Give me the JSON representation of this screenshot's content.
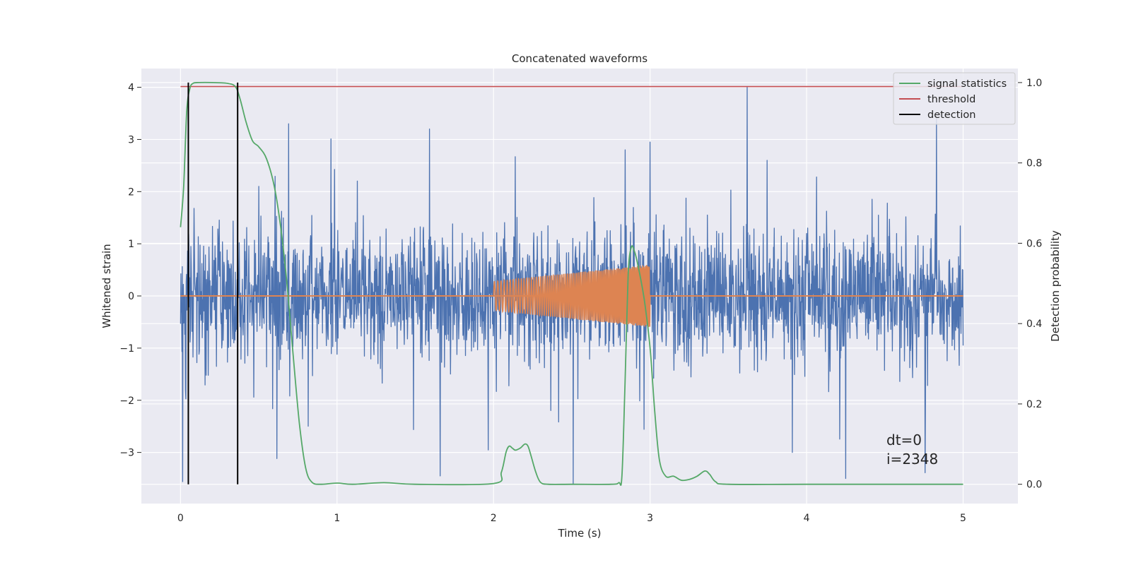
{
  "chart_data": {
    "type": "line",
    "title": "Concatenated waveforms",
    "xlabel": "Time (s)",
    "ylabel": "Whitened strain",
    "ylabel_right": "Detection probability",
    "xlim": [
      -0.25,
      5.35
    ],
    "ylim": [
      -3.98,
      4.36
    ],
    "ylim_right": [
      -0.048,
      1.035
    ],
    "x_ticks": [
      0,
      1,
      2,
      3,
      4,
      5
    ],
    "x_tick_labels": [
      "0",
      "1",
      "2",
      "3",
      "4",
      "5"
    ],
    "y_ticks": [
      -3,
      -2,
      -1,
      0,
      1,
      2,
      3,
      4
    ],
    "y_tick_labels": [
      "−3",
      "−2",
      "−1",
      "0",
      "1",
      "2",
      "3",
      "4"
    ],
    "y_ticks_right": [
      0.0,
      0.2,
      0.4,
      0.6,
      0.8,
      1.0
    ],
    "y_tick_labels_right": [
      "0.0",
      "0.2",
      "0.4",
      "0.6",
      "0.8",
      "1.0"
    ],
    "grid": true,
    "legend_position": "top-right",
    "legend": [
      {
        "label": "signal statistics",
        "color": "#55a868"
      },
      {
        "label": "threshold",
        "color": "#c44e52"
      },
      {
        "label": "detection",
        "color": "#000000"
      }
    ],
    "series": [
      {
        "key": "noise",
        "axis": "left",
        "color": "#4c72b0",
        "x_range": [
          0,
          5
        ],
        "typical_envelope": [
          -1.5,
          1.5
        ],
        "spikes": [
          {
            "x": 0.5,
            "y": 2.1
          },
          {
            "x": 0.69,
            "y": 3.3
          },
          {
            "x": 1.59,
            "y": 3.2
          },
          {
            "x": 1.66,
            "y": -3.45
          },
          {
            "x": 2.51,
            "y": -3.6
          },
          {
            "x": 2.84,
            "y": 2.8
          },
          {
            "x": 3.0,
            "y": 2.95
          },
          {
            "x": 3.62,
            "y": 4.0
          },
          {
            "x": 3.91,
            "y": -3.0
          },
          {
            "x": 4.25,
            "y": -3.5
          },
          {
            "x": 4.83,
            "y": 3.4
          }
        ]
      },
      {
        "key": "waveform",
        "axis": "left",
        "color": "#dd8452",
        "baseline_x": [
          0,
          5
        ],
        "baseline_y": 0,
        "chirp_x_range": [
          2.0,
          3.0
        ],
        "chirp_amplitude_range": [
          0.28,
          0.6
        ]
      },
      {
        "key": "signal statistics",
        "axis": "right",
        "color": "#55a868",
        "x": [
          0.0,
          0.02,
          0.04,
          0.06,
          0.08,
          0.12,
          0.2,
          0.3,
          0.35,
          0.38,
          0.42,
          0.46,
          0.5,
          0.55,
          0.6,
          0.64,
          0.68,
          0.72,
          0.76,
          0.8,
          0.84,
          0.9,
          1.0,
          1.1,
          1.3,
          1.5,
          2.0,
          2.05,
          2.08,
          2.1,
          2.12,
          2.14,
          2.17,
          2.2,
          2.22,
          2.24,
          2.27,
          2.3,
          2.35,
          2.5,
          2.75,
          2.8,
          2.82,
          2.84,
          2.86,
          2.88,
          2.9,
          2.92,
          2.95,
          2.97,
          3.0,
          3.03,
          3.06,
          3.1,
          3.15,
          3.2,
          3.25,
          3.3,
          3.35,
          3.38,
          3.42,
          3.5,
          4.0,
          5.0
        ],
        "y": [
          0.64,
          0.74,
          0.93,
          0.985,
          0.998,
          1.0,
          1.0,
          0.998,
          0.99,
          0.96,
          0.9,
          0.855,
          0.84,
          0.81,
          0.74,
          0.64,
          0.5,
          0.32,
          0.15,
          0.04,
          0.005,
          0.0,
          0.003,
          0.0,
          0.004,
          0.0,
          0.002,
          0.03,
          0.08,
          0.095,
          0.09,
          0.085,
          0.09,
          0.1,
          0.095,
          0.07,
          0.03,
          0.005,
          0.0,
          0.0,
          0.0,
          0.004,
          0.02,
          0.25,
          0.52,
          0.59,
          0.58,
          0.55,
          0.49,
          0.44,
          0.34,
          0.18,
          0.06,
          0.02,
          0.02,
          0.01,
          0.012,
          0.02,
          0.033,
          0.025,
          0.006,
          0.0,
          0.0,
          0.0
        ]
      },
      {
        "key": "threshold",
        "axis": "right",
        "color": "#c44e52",
        "x": [
          0,
          5
        ],
        "y": [
          0.99,
          0.99
        ]
      },
      {
        "key": "detection",
        "axis": "right",
        "color": "#000000",
        "x_positions": [
          0.05,
          0.365
        ],
        "y_range": [
          0.0,
          1.0
        ]
      }
    ],
    "annotations": [
      "dt=0",
      "i=2348"
    ]
  }
}
